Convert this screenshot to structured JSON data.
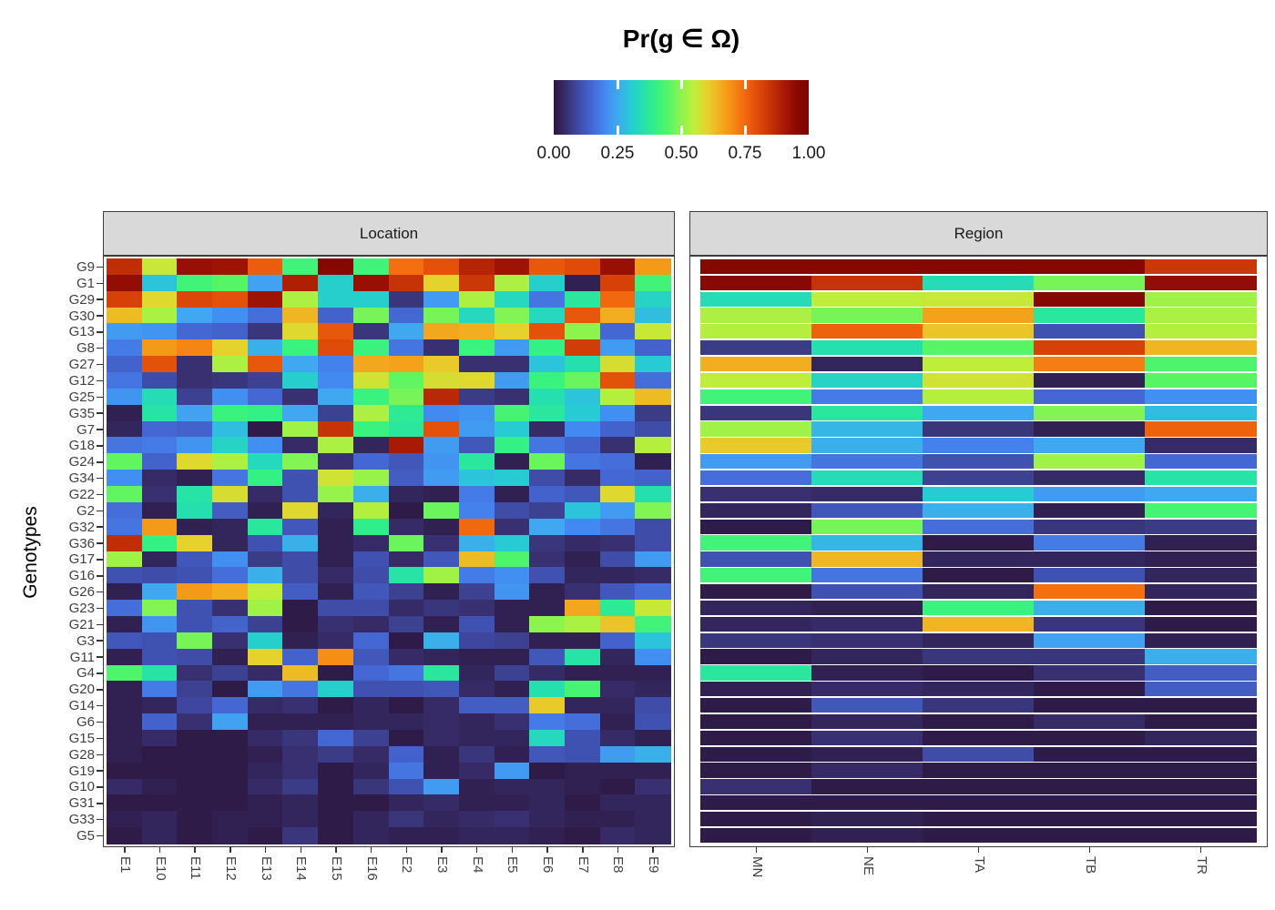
{
  "legend": {
    "title": "Pr(g ∈ Ω)",
    "tick_labels": [
      "0.00",
      "0.25",
      "0.50",
      "0.75",
      "1.00"
    ]
  },
  "chart_data": {
    "type": "heatmap",
    "title": "Pr(g ∈ Ω)",
    "ylabel": "Genotypes",
    "value_range": [
      0,
      1
    ],
    "legend_ticks": [
      0,
      0.25,
      0.5,
      0.75,
      1
    ],
    "colormap": "turbo-like",
    "colormap_anchors": [
      "#2c163e",
      "#383070",
      "#3f4da8",
      "#4567d4",
      "#4389f2",
      "#3fa8f0",
      "#27cbd4",
      "#25e0ae",
      "#33f184",
      "#55f566",
      "#8df44e",
      "#bfee3a",
      "#e6d22c",
      "#f2ae20",
      "#f68d15",
      "#f2680f",
      "#e04b0a",
      "#c63306",
      "#a81a04",
      "#8c0a03",
      "#7a0403"
    ],
    "rows": [
      "G9",
      "G1",
      "G29",
      "G30",
      "G13",
      "G8",
      "G27",
      "G12",
      "G25",
      "G35",
      "G7",
      "G18",
      "G24",
      "G34",
      "G22",
      "G2",
      "G32",
      "G36",
      "G17",
      "G16",
      "G26",
      "G23",
      "G21",
      "G3",
      "G11",
      "G4",
      "G20",
      "G14",
      "G6",
      "G15",
      "G28",
      "G19",
      "G10",
      "G31",
      "G33",
      "G5"
    ],
    "facets": [
      {
        "label": "Location",
        "columns": [
          "E1",
          "E10",
          "E11",
          "E12",
          "E13",
          "E14",
          "E15",
          "E16",
          "E2",
          "E3",
          "E4",
          "E5",
          "E6",
          "E7",
          "E8",
          "E9"
        ],
        "values": [
          [
            0.86,
            0.56,
            0.93,
            0.92,
            0.77,
            0.42,
            0.97,
            0.42,
            0.74,
            0.79,
            0.88,
            0.92,
            0.78,
            0.8,
            0.93,
            0.68
          ],
          [
            0.94,
            0.29,
            0.42,
            0.45,
            0.24,
            0.89,
            0.31,
            0.93,
            0.85,
            0.6,
            0.84,
            0.53,
            0.31,
            0.02,
            0.82,
            0.42
          ],
          [
            0.82,
            0.59,
            0.81,
            0.79,
            0.92,
            0.53,
            0.31,
            0.31,
            0.06,
            0.23,
            0.53,
            0.33,
            0.17,
            0.37,
            0.75,
            0.32
          ],
          [
            0.63,
            0.53,
            0.25,
            0.21,
            0.16,
            0.64,
            0.14,
            0.48,
            0.15,
            0.48,
            0.33,
            0.49,
            0.33,
            0.78,
            0.65,
            0.28
          ],
          [
            0.23,
            0.22,
            0.15,
            0.14,
            0.06,
            0.59,
            0.78,
            0.06,
            0.25,
            0.66,
            0.65,
            0.6,
            0.79,
            0.5,
            0.15,
            0.56
          ],
          [
            0.18,
            0.68,
            0.71,
            0.6,
            0.26,
            0.41,
            0.8,
            0.41,
            0.17,
            0.05,
            0.41,
            0.23,
            0.4,
            0.83,
            0.23,
            0.14
          ],
          [
            0.14,
            0.79,
            0.05,
            0.53,
            0.78,
            0.25,
            0.19,
            0.66,
            0.67,
            0.61,
            0.05,
            0.05,
            0.29,
            0.35,
            0.58,
            0.3
          ],
          [
            0.17,
            0.1,
            0.05,
            0.06,
            0.08,
            0.31,
            0.2,
            0.57,
            0.46,
            0.58,
            0.59,
            0.23,
            0.41,
            0.47,
            0.79,
            0.16
          ],
          [
            0.22,
            0.34,
            0.08,
            0.21,
            0.15,
            0.05,
            0.25,
            0.41,
            0.48,
            0.87,
            0.07,
            0.05,
            0.35,
            0.29,
            0.54,
            0.63
          ],
          [
            0.02,
            0.36,
            0.24,
            0.41,
            0.4,
            0.25,
            0.08,
            0.53,
            0.38,
            0.2,
            0.22,
            0.43,
            0.37,
            0.3,
            0.21,
            0.07
          ],
          [
            0.03,
            0.15,
            0.14,
            0.28,
            0.01,
            0.52,
            0.85,
            0.41,
            0.37,
            0.79,
            0.23,
            0.3,
            0.04,
            0.2,
            0.14,
            0.1
          ],
          [
            0.17,
            0.18,
            0.22,
            0.32,
            0.21,
            0.04,
            0.53,
            0.03,
            0.9,
            0.23,
            0.12,
            0.4,
            0.17,
            0.14,
            0.05,
            0.54
          ],
          [
            0.46,
            0.14,
            0.59,
            0.53,
            0.33,
            0.49,
            0.05,
            0.15,
            0.12,
            0.22,
            0.37,
            0.02,
            0.47,
            0.17,
            0.16,
            0.02
          ],
          [
            0.21,
            0.04,
            0.02,
            0.17,
            0.4,
            0.11,
            0.57,
            0.51,
            0.13,
            0.23,
            0.29,
            0.3,
            0.1,
            0.04,
            0.15,
            0.14
          ],
          [
            0.46,
            0.05,
            0.36,
            0.58,
            0.04,
            0.11,
            0.51,
            0.26,
            0.03,
            0.02,
            0.18,
            0.02,
            0.14,
            0.12,
            0.59,
            0.35
          ],
          [
            0.16,
            0.02,
            0.35,
            0.13,
            0.02,
            0.59,
            0.03,
            0.54,
            0.01,
            0.47,
            0.19,
            0.1,
            0.08,
            0.29,
            0.23,
            0.49
          ],
          [
            0.17,
            0.68,
            0.02,
            0.03,
            0.37,
            0.12,
            0.02,
            0.39,
            0.04,
            0.02,
            0.75,
            0.05,
            0.25,
            0.2,
            0.17,
            0.1
          ],
          [
            0.86,
            0.4,
            0.6,
            0.03,
            0.11,
            0.26,
            0.02,
            0.04,
            0.47,
            0.05,
            0.26,
            0.3,
            0.06,
            0.04,
            0.05,
            0.1
          ],
          [
            0.52,
            0.03,
            0.12,
            0.21,
            0.07,
            0.1,
            0.02,
            0.11,
            0.04,
            0.12,
            0.63,
            0.44,
            0.05,
            0.02,
            0.1,
            0.23
          ],
          [
            0.11,
            0.1,
            0.11,
            0.16,
            0.26,
            0.1,
            0.04,
            0.1,
            0.36,
            0.52,
            0.18,
            0.21,
            0.11,
            0.03,
            0.03,
            0.04
          ],
          [
            0.02,
            0.25,
            0.68,
            0.65,
            0.55,
            0.13,
            0.02,
            0.12,
            0.08,
            0.02,
            0.08,
            0.22,
            0.02,
            0.05,
            0.12,
            0.16
          ],
          [
            0.16,
            0.49,
            0.11,
            0.05,
            0.52,
            0.01,
            0.1,
            0.1,
            0.04,
            0.06,
            0.05,
            0.02,
            0.02,
            0.66,
            0.38,
            0.56
          ],
          [
            0.02,
            0.22,
            0.11,
            0.14,
            0.08,
            0.01,
            0.05,
            0.04,
            0.08,
            0.02,
            0.11,
            0.02,
            0.5,
            0.53,
            0.62,
            0.42
          ],
          [
            0.12,
            0.11,
            0.48,
            0.05,
            0.31,
            0.02,
            0.04,
            0.15,
            0.01,
            0.26,
            0.09,
            0.08,
            0.02,
            0.02,
            0.14,
            0.29
          ],
          [
            0.02,
            0.11,
            0.1,
            0.02,
            0.6,
            0.14,
            0.7,
            0.12,
            0.04,
            0.03,
            0.02,
            0.02,
            0.12,
            0.36,
            0.03,
            0.21
          ],
          [
            0.44,
            0.36,
            0.05,
            0.08,
            0.04,
            0.63,
            0.01,
            0.15,
            0.17,
            0.37,
            0.03,
            0.08,
            0.04,
            0.02,
            0.02,
            0.02
          ],
          [
            0.02,
            0.18,
            0.08,
            0.01,
            0.23,
            0.17,
            0.31,
            0.11,
            0.11,
            0.12,
            0.04,
            0.02,
            0.35,
            0.43,
            0.04,
            0.03
          ],
          [
            0.02,
            0.03,
            0.09,
            0.15,
            0.04,
            0.05,
            0.01,
            0.03,
            0.01,
            0.04,
            0.13,
            0.13,
            0.61,
            0.03,
            0.03,
            0.1
          ],
          [
            0.02,
            0.14,
            0.05,
            0.24,
            0.02,
            0.02,
            0.02,
            0.03,
            0.03,
            0.04,
            0.03,
            0.05,
            0.18,
            0.16,
            0.02,
            0.11
          ],
          [
            0.02,
            0.04,
            0.01,
            0.01,
            0.04,
            0.06,
            0.15,
            0.08,
            0.01,
            0.04,
            0.03,
            0.03,
            0.33,
            0.11,
            0.04,
            0.02
          ],
          [
            0.02,
            0.01,
            0.01,
            0.01,
            0.02,
            0.05,
            0.07,
            0.04,
            0.14,
            0.02,
            0.06,
            0.02,
            0.12,
            0.11,
            0.23,
            0.26
          ],
          [
            0.01,
            0.01,
            0.01,
            0.01,
            0.03,
            0.05,
            0.01,
            0.03,
            0.17,
            0.02,
            0.04,
            0.23,
            0.01,
            0.02,
            0.02,
            0.02
          ],
          [
            0.04,
            0.02,
            0.01,
            0.01,
            0.04,
            0.07,
            0.01,
            0.06,
            0.11,
            0.23,
            0.02,
            0.03,
            0.03,
            0.02,
            0.01,
            0.05
          ],
          [
            0.01,
            0.01,
            0.01,
            0.01,
            0.02,
            0.03,
            0.01,
            0.01,
            0.03,
            0.04,
            0.02,
            0.02,
            0.03,
            0.01,
            0.03,
            0.03
          ],
          [
            0.02,
            0.03,
            0.01,
            0.02,
            0.02,
            0.03,
            0.01,
            0.03,
            0.06,
            0.03,
            0.04,
            0.05,
            0.03,
            0.02,
            0.02,
            0.03
          ],
          [
            0.01,
            0.03,
            0.01,
            0.02,
            0.01,
            0.06,
            0.01,
            0.03,
            0.02,
            0.02,
            0.03,
            0.03,
            0.02,
            0.01,
            0.04,
            0.03
          ]
        ]
      },
      {
        "label": "Region",
        "columns": [
          "MN",
          "NE",
          "TA",
          "TB",
          "TR"
        ],
        "values": [
          [
            0.97,
            0.97,
            0.97,
            0.97,
            0.84
          ],
          [
            0.96,
            0.85,
            0.34,
            0.48,
            0.94
          ],
          [
            0.34,
            0.55,
            0.56,
            0.97,
            0.52
          ],
          [
            0.53,
            0.48,
            0.67,
            0.37,
            0.53
          ],
          [
            0.54,
            0.76,
            0.62,
            0.11,
            0.54
          ],
          [
            0.07,
            0.35,
            0.45,
            0.82,
            0.64
          ],
          [
            0.65,
            0.03,
            0.55,
            0.72,
            0.44
          ],
          [
            0.55,
            0.32,
            0.57,
            0.02,
            0.45
          ],
          [
            0.42,
            0.18,
            0.54,
            0.15,
            0.21
          ],
          [
            0.06,
            0.37,
            0.25,
            0.49,
            0.28
          ],
          [
            0.52,
            0.27,
            0.06,
            0.02,
            0.76
          ],
          [
            0.61,
            0.26,
            0.19,
            0.25,
            0.04
          ],
          [
            0.23,
            0.17,
            0.11,
            0.52,
            0.15
          ],
          [
            0.16,
            0.34,
            0.08,
            0.04,
            0.36
          ],
          [
            0.05,
            0.04,
            0.3,
            0.23,
            0.25
          ],
          [
            0.03,
            0.12,
            0.26,
            0.02,
            0.43
          ],
          [
            0.01,
            0.48,
            0.16,
            0.06,
            0.07
          ],
          [
            0.42,
            0.27,
            0.01,
            0.18,
            0.02
          ],
          [
            0.11,
            0.64,
            0.03,
            0.03,
            0.02
          ],
          [
            0.42,
            0.17,
            0.01,
            0.11,
            0.03
          ],
          [
            0.01,
            0.11,
            0.03,
            0.74,
            0.03
          ],
          [
            0.03,
            0.02,
            0.41,
            0.26,
            0.01
          ],
          [
            0.03,
            0.04,
            0.64,
            0.06,
            0.01
          ],
          [
            0.06,
            0.05,
            0.03,
            0.24,
            0.02
          ],
          [
            0.01,
            0.03,
            0.06,
            0.06,
            0.26
          ],
          [
            0.37,
            0.02,
            0.01,
            0.05,
            0.13
          ],
          [
            0.02,
            0.04,
            0.03,
            0.01,
            0.13
          ],
          [
            0.01,
            0.12,
            0.06,
            0.01,
            0.01
          ],
          [
            0.01,
            0.03,
            0.01,
            0.04,
            0.01
          ],
          [
            0.01,
            0.05,
            0.01,
            0.01,
            0.03
          ],
          [
            0.01,
            0.02,
            0.1,
            0.01,
            0.01
          ],
          [
            0.01,
            0.04,
            0.01,
            0.01,
            0.01
          ],
          [
            0.05,
            0.01,
            0.01,
            0.01,
            0.01
          ],
          [
            0.01,
            0.01,
            0.01,
            0.01,
            0.01
          ],
          [
            0.01,
            0.02,
            0.01,
            0.01,
            0.01
          ],
          [
            0.01,
            0.02,
            0.01,
            0.01,
            0.01
          ]
        ]
      }
    ]
  }
}
